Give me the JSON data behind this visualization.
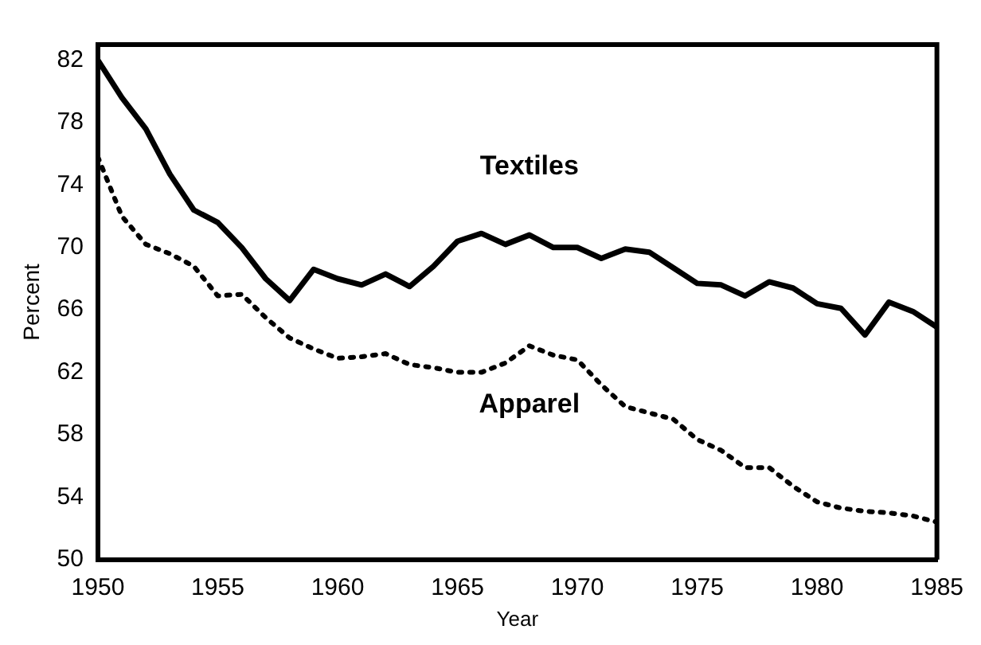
{
  "chart_data": {
    "type": "line",
    "xlabel": "Year",
    "ylabel": "Percent",
    "x": [
      1950,
      1951,
      1952,
      1953,
      1954,
      1955,
      1956,
      1957,
      1958,
      1959,
      1960,
      1961,
      1962,
      1963,
      1964,
      1965,
      1966,
      1967,
      1968,
      1969,
      1970,
      1971,
      1972,
      1973,
      1974,
      1975,
      1976,
      1977,
      1978,
      1979,
      1980,
      1981,
      1982,
      1983,
      1984,
      1985
    ],
    "series": [
      {
        "name": "Textiles",
        "color": "#000000",
        "line_style": "solid",
        "values": [
          82,
          79.6,
          77.6,
          74.7,
          72.4,
          71.6,
          70,
          68,
          66.6,
          68.6,
          68,
          67.6,
          68.3,
          67.5,
          68.8,
          70.4,
          70.9,
          70.2,
          70.8,
          70,
          70,
          69.3,
          69.9,
          69.7,
          68.7,
          67.7,
          67.6,
          66.9,
          67.8,
          67.4,
          66.4,
          66.1,
          64.4,
          66.5,
          65.9,
          64.9
        ]
      },
      {
        "name": "Apparel",
        "color": "#000000",
        "line_style": "dotted",
        "values": [
          75.8,
          72,
          70.2,
          69.6,
          68.8,
          66.9,
          67,
          65.5,
          64.2,
          63.5,
          62.9,
          63,
          63.2,
          62.5,
          62.3,
          62,
          62,
          62.6,
          63.7,
          63.1,
          62.8,
          61.2,
          59.8,
          59.4,
          59,
          57.7,
          57,
          55.9,
          55.9,
          54.7,
          53.7,
          53.3,
          53.1,
          53,
          52.8,
          52.4
        ]
      }
    ],
    "xlim": [
      1950,
      1985
    ],
    "xticks": [
      1950,
      1955,
      1960,
      1965,
      1970,
      1975,
      1980,
      1985
    ],
    "ylim": [
      50,
      83
    ],
    "yticks": [
      50,
      54,
      58,
      62,
      66,
      70,
      74,
      78,
      82
    ],
    "grid": false,
    "legend": false,
    "marker": "none"
  }
}
